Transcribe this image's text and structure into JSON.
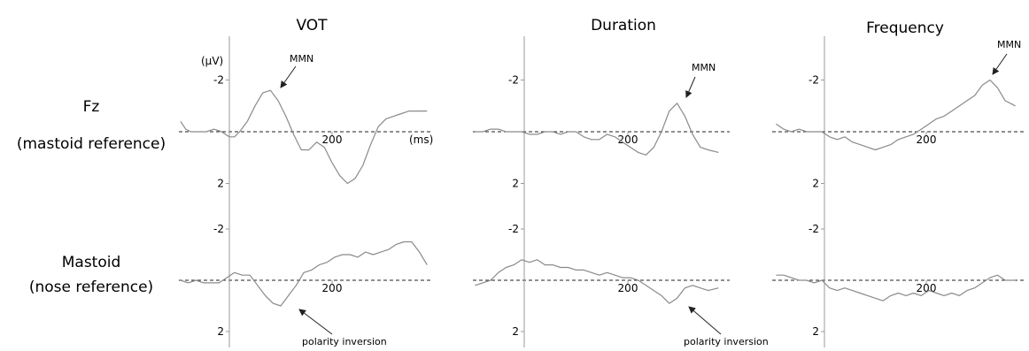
{
  "columns": [
    "VOT",
    "Duration",
    "Frequency"
  ],
  "rows": [
    {
      "label_line1": "Fz",
      "label_line2": "(mastoid reference)"
    },
    {
      "label_line1": "Mastoid",
      "label_line2": "(nose reference)"
    }
  ],
  "y_unit_label": "(µV)",
  "x_unit_label": "(ms)",
  "y_tick_labels": [
    "-2",
    "2"
  ],
  "x_tick_label": "200",
  "annotations": {
    "mmn": "MMN",
    "polarity": "polarity inversion"
  },
  "colors": {
    "trace": "#8a8a8a",
    "axis": "#9a9a9a",
    "baseline": "#222222"
  },
  "chart_data": [
    {
      "type": "line",
      "title": "VOT",
      "row_label": "Fz (mastoid reference)",
      "xlabel": "(ms)",
      "ylabel": "(µV)",
      "y_axis": "negative up",
      "ylim": [
        2.1,
        -2.1
      ],
      "xlim": [
        -95,
        385
      ],
      "series": [
        {
          "x": [
            -95,
            -85,
            -75,
            -60,
            -45,
            -30,
            -15,
            0,
            10,
            20,
            35,
            50,
            65,
            80,
            95,
            110,
            125,
            140,
            155,
            170,
            185,
            200,
            215,
            230,
            245,
            260,
            275,
            290,
            305,
            320,
            335,
            350,
            365,
            385
          ],
          "y": [
            -0.4,
            -0.1,
            0.0,
            0.0,
            0.0,
            -0.1,
            0.0,
            0.2,
            0.2,
            0.0,
            -0.4,
            -1.0,
            -1.5,
            -1.6,
            -1.2,
            -0.6,
            0.1,
            0.7,
            0.7,
            0.4,
            0.6,
            1.2,
            1.7,
            2.0,
            1.8,
            1.3,
            0.5,
            -0.2,
            -0.5,
            -0.6,
            -0.7,
            -0.8,
            -0.8,
            -0.8
          ]
        }
      ],
      "annotations": [
        "MMN"
      ]
    },
    {
      "type": "line",
      "title": "Duration",
      "row_label": "Fz (mastoid reference)",
      "y_axis": "negative up",
      "ylim": [
        2.1,
        -2.1
      ],
      "xlim": [
        -95,
        375
      ],
      "series": [
        {
          "x": [
            -95,
            -80,
            -65,
            -50,
            -35,
            -20,
            -5,
            10,
            25,
            40,
            55,
            70,
            85,
            100,
            115,
            130,
            145,
            160,
            175,
            190,
            205,
            220,
            235,
            250,
            265,
            280,
            295,
            310,
            325,
            340,
            355,
            375
          ],
          "y": [
            0.0,
            0.0,
            -0.1,
            -0.1,
            0.0,
            0.0,
            0.0,
            0.1,
            0.1,
            0.0,
            0.0,
            0.1,
            0.0,
            0.0,
            0.2,
            0.3,
            0.3,
            0.1,
            0.2,
            0.4,
            0.6,
            0.8,
            0.9,
            0.6,
            0.0,
            -0.8,
            -1.1,
            -0.6,
            0.1,
            0.6,
            0.7,
            0.8
          ]
        }
      ],
      "annotations": [
        "MMN"
      ]
    },
    {
      "type": "line",
      "title": "Frequency",
      "row_label": "Fz (mastoid reference)",
      "y_axis": "negative up",
      "ylim": [
        2.1,
        -2.1
      ],
      "xlim": [
        -95,
        375
      ],
      "series": [
        {
          "x": [
            -95,
            -80,
            -65,
            -50,
            -35,
            -20,
            -5,
            10,
            25,
            40,
            55,
            70,
            85,
            100,
            115,
            130,
            145,
            160,
            175,
            190,
            205,
            220,
            235,
            250,
            265,
            280,
            295,
            310,
            325,
            340,
            355,
            375
          ],
          "y": [
            -0.3,
            -0.1,
            0.0,
            -0.1,
            0.0,
            0.0,
            0.0,
            0.2,
            0.3,
            0.2,
            0.4,
            0.5,
            0.6,
            0.7,
            0.6,
            0.5,
            0.3,
            0.2,
            0.1,
            -0.1,
            -0.3,
            -0.5,
            -0.6,
            -0.8,
            -1.0,
            -1.2,
            -1.4,
            -1.8,
            -2.0,
            -1.7,
            -1.2,
            -1.0
          ]
        }
      ],
      "annotations": [
        "MMN"
      ]
    },
    {
      "type": "line",
      "title": "VOT",
      "row_label": "Mastoid (nose reference)",
      "xlabel": "(ms)",
      "ylabel": "(µV)",
      "y_axis": "negative up",
      "ylim": [
        2.1,
        -2.1
      ],
      "xlim": [
        -95,
        385
      ],
      "series": [
        {
          "x": [
            -95,
            -80,
            -65,
            -50,
            -35,
            -20,
            -5,
            10,
            25,
            40,
            55,
            70,
            85,
            100,
            115,
            130,
            145,
            160,
            175,
            190,
            205,
            220,
            235,
            250,
            265,
            280,
            295,
            310,
            325,
            340,
            355,
            370,
            385
          ],
          "y": [
            0.0,
            0.1,
            0.0,
            0.1,
            0.1,
            0.1,
            -0.1,
            -0.3,
            -0.2,
            -0.2,
            0.2,
            0.6,
            0.9,
            1.0,
            0.6,
            0.2,
            -0.3,
            -0.4,
            -0.6,
            -0.7,
            -0.9,
            -1.0,
            -1.0,
            -0.9,
            -1.1,
            -1.0,
            -1.1,
            -1.2,
            -1.4,
            -1.5,
            -1.5,
            -1.1,
            -0.6
          ]
        }
      ],
      "annotations": [
        "polarity inversion"
      ]
    },
    {
      "type": "line",
      "title": "Duration",
      "row_label": "Mastoid (nose reference)",
      "y_axis": "negative up",
      "ylim": [
        2.1,
        -2.1
      ],
      "xlim": [
        -95,
        375
      ],
      "series": [
        {
          "x": [
            -95,
            -80,
            -65,
            -50,
            -35,
            -20,
            -5,
            10,
            25,
            40,
            55,
            70,
            85,
            100,
            115,
            130,
            145,
            160,
            175,
            190,
            205,
            220,
            235,
            250,
            265,
            280,
            295,
            310,
            325,
            340,
            355,
            375
          ],
          "y": [
            0.2,
            0.1,
            0.0,
            -0.3,
            -0.5,
            -0.6,
            -0.8,
            -0.7,
            -0.8,
            -0.6,
            -0.6,
            -0.5,
            -0.5,
            -0.4,
            -0.4,
            -0.3,
            -0.2,
            -0.3,
            -0.2,
            -0.1,
            -0.1,
            0.0,
            0.2,
            0.4,
            0.6,
            0.9,
            0.7,
            0.3,
            0.2,
            0.3,
            0.4,
            0.3
          ]
        }
      ],
      "annotations": [
        "polarity inversion"
      ]
    },
    {
      "type": "line",
      "title": "Frequency",
      "row_label": "Mastoid (nose reference)",
      "y_axis": "negative up",
      "ylim": [
        2.1,
        -2.1
      ],
      "xlim": [
        -95,
        375
      ],
      "series": [
        {
          "x": [
            -95,
            -80,
            -65,
            -50,
            -35,
            -20,
            -5,
            10,
            25,
            40,
            55,
            70,
            85,
            100,
            115,
            130,
            145,
            160,
            175,
            190,
            205,
            220,
            235,
            250,
            265,
            280,
            295,
            310,
            325,
            340,
            355,
            375
          ],
          "y": [
            -0.2,
            -0.2,
            -0.1,
            0.0,
            0.0,
            0.1,
            0.0,
            0.3,
            0.4,
            0.3,
            0.4,
            0.5,
            0.6,
            0.7,
            0.8,
            0.6,
            0.5,
            0.6,
            0.5,
            0.6,
            0.4,
            0.5,
            0.6,
            0.5,
            0.6,
            0.4,
            0.3,
            0.1,
            -0.1,
            -0.2,
            0.0,
            0.0
          ]
        }
      ],
      "annotations": []
    }
  ]
}
